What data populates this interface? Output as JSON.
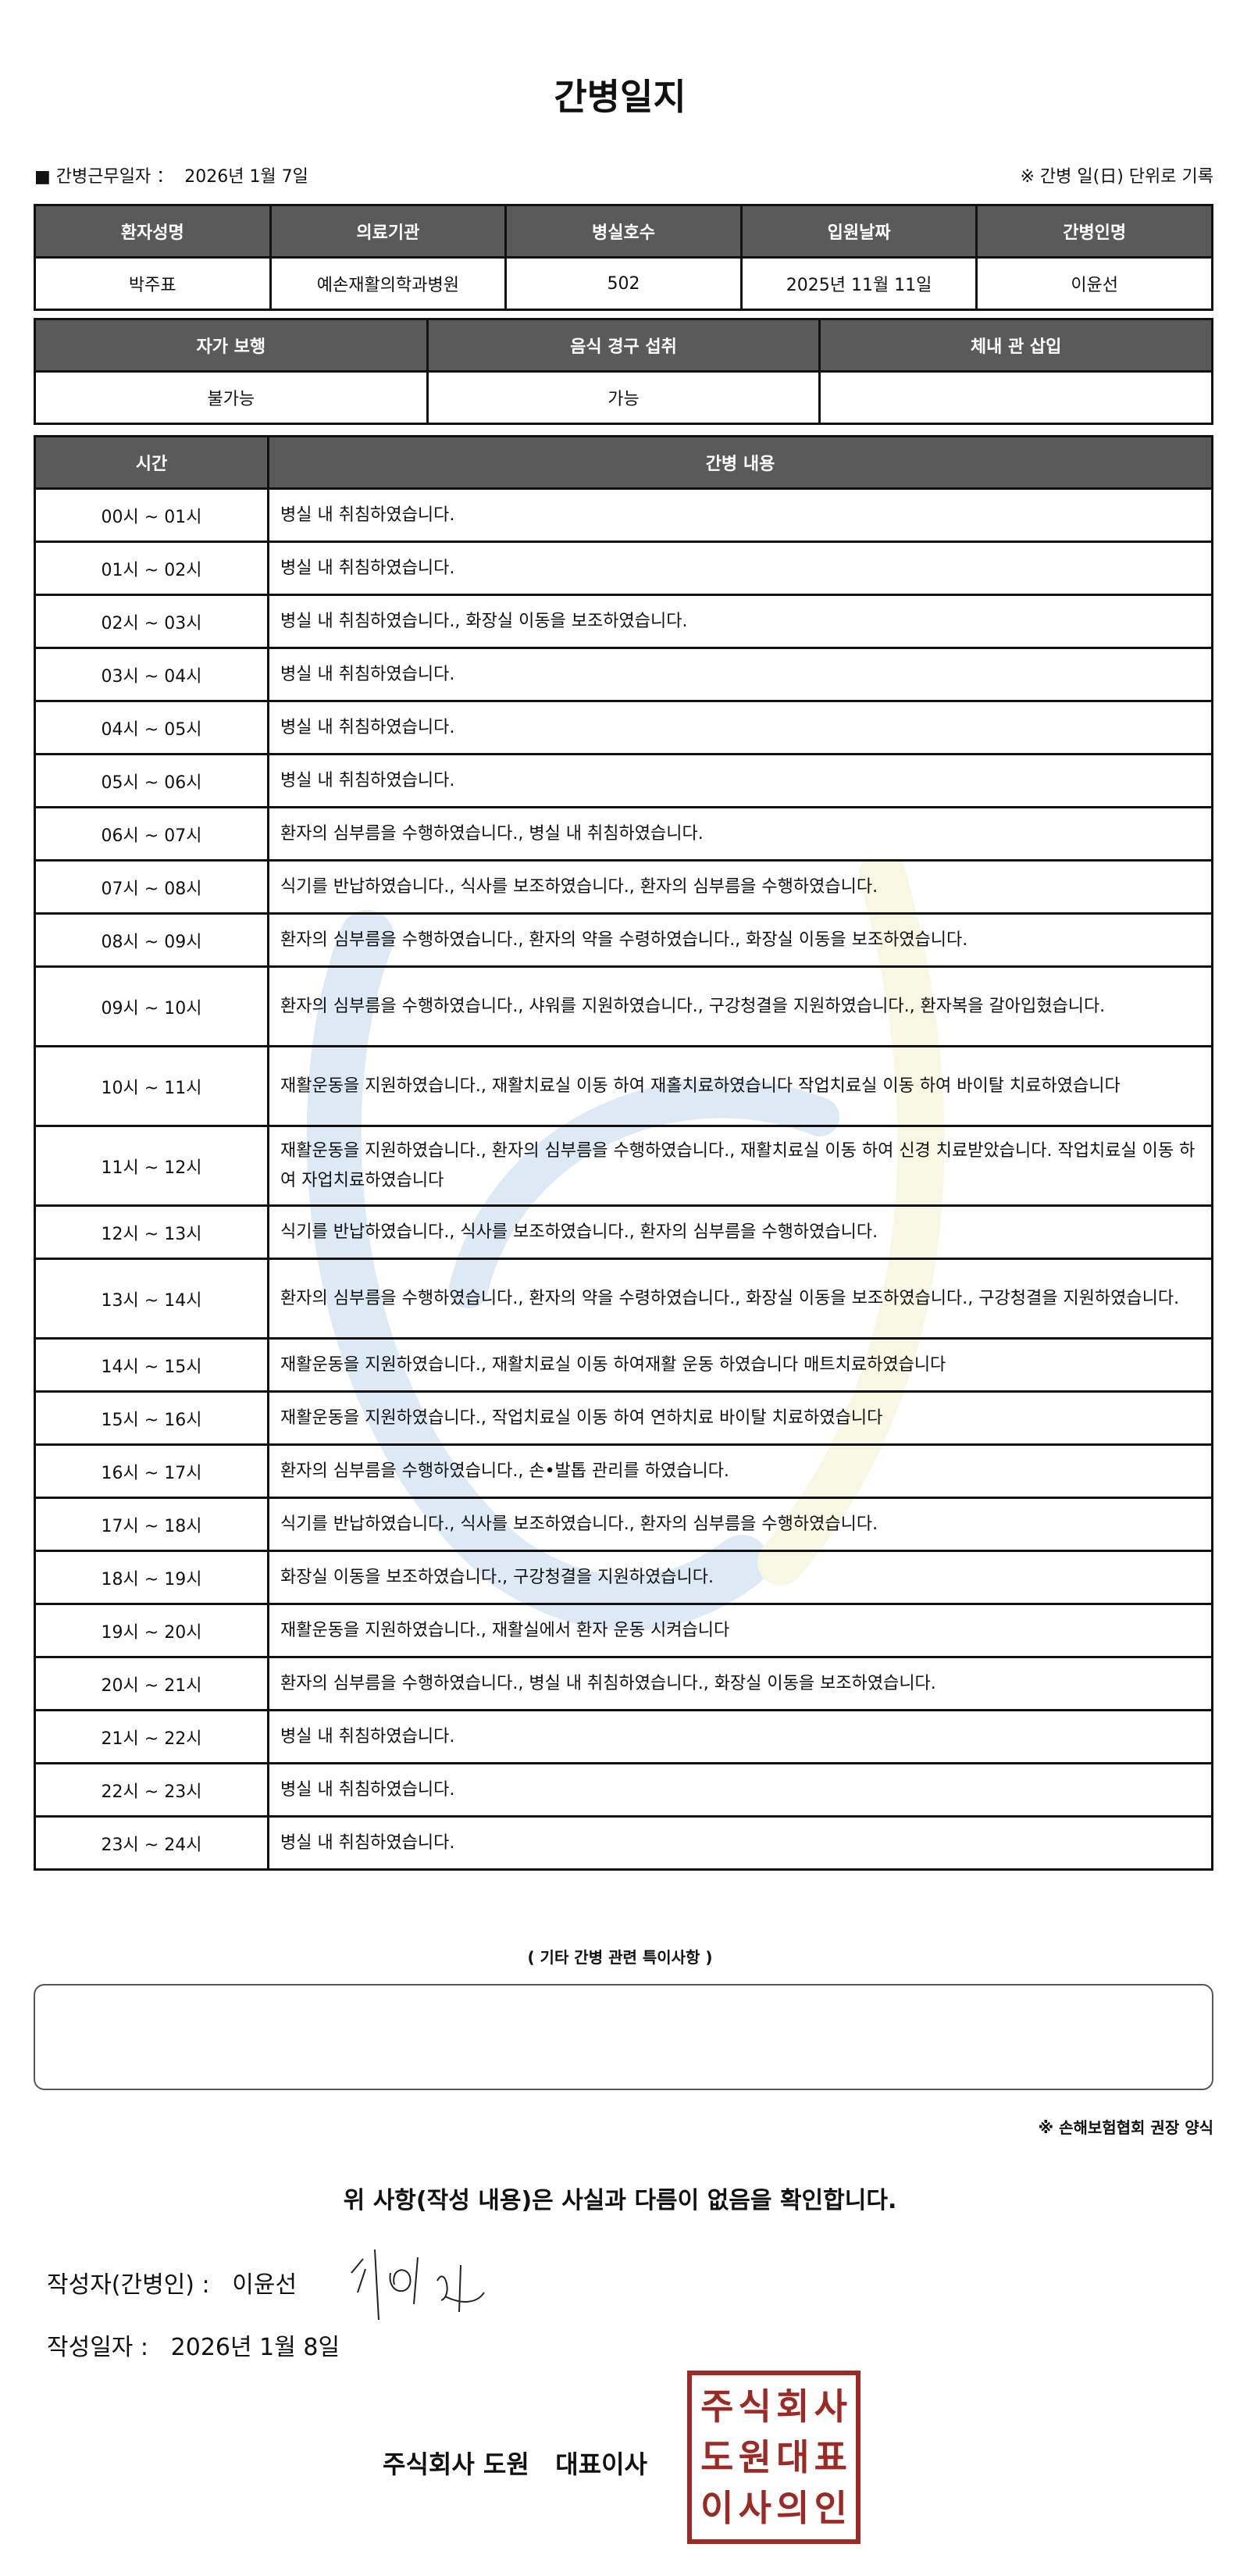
{
  "title": "간병일지",
  "work_date": {
    "label": "■ 간병근무일자 ：",
    "value": "2026년 1월 7일"
  },
  "unit_note": "※ 간병 일(日) 단위로 기록",
  "info": {
    "headers": [
      "환자성명",
      "의료기관",
      "병실호수",
      "입원날짜",
      "간병인명"
    ],
    "values": [
      "박주표",
      "예손재활의학과병원",
      "502",
      "2025년 11월 11일",
      "이윤선"
    ]
  },
  "status": {
    "headers": [
      "자가 보행",
      "음식 경구 섭취",
      "체내 관 삽입"
    ],
    "values": [
      "불가능",
      "가능",
      ""
    ]
  },
  "log": {
    "headers": [
      "시간",
      "간병 내용"
    ],
    "rows": [
      {
        "time": "00시 ~ 01시",
        "content": "병실 내 취침하였습니다."
      },
      {
        "time": "01시 ~ 02시",
        "content": "병실 내 취침하였습니다."
      },
      {
        "time": "02시 ~ 03시",
        "content": "병실 내 취침하였습니다., 화장실 이동을 보조하였습니다."
      },
      {
        "time": "03시 ~ 04시",
        "content": "병실 내 취침하였습니다."
      },
      {
        "time": "04시 ~ 05시",
        "content": "병실 내 취침하였습니다."
      },
      {
        "time": "05시 ~ 06시",
        "content": "병실 내 취침하였습니다."
      },
      {
        "time": "06시 ~ 07시",
        "content": "환자의 심부름을 수행하였습니다., 병실 내 취침하였습니다."
      },
      {
        "time": "07시 ~ 08시",
        "content": "식기를 반납하였습니다., 식사를 보조하였습니다., 환자의 심부름을 수행하였습니다."
      },
      {
        "time": "08시 ~ 09시",
        "content": "환자의 심부름을 수행하였습니다., 환자의 약을 수령하였습니다., 화장실 이동을 보조하였습니다."
      },
      {
        "time": "09시 ~ 10시",
        "content": "환자의 심부름을 수행하였습니다., 샤워를 지원하였습니다., 구강청결을 지원하였습니다., 환자복을 갈아입혔습니다."
      },
      {
        "time": "10시 ~ 11시",
        "content": "재활운동을 지원하였습니다., 재활치료실 이동 하여 재홀치료하였습니다 작업치료실 이동 하여 바이탈 치료하였습니다"
      },
      {
        "time": "11시 ~ 12시",
        "content": "재활운동을 지원하였습니다., 환자의 심부름을 수행하였습니다., 재활치료실 이동 하여 신경 치료받았습니다. 작업치료실 이동 하여 자업치료하였습니다"
      },
      {
        "time": "12시 ~ 13시",
        "content": "식기를 반납하였습니다., 식사를 보조하였습니다., 환자의 심부름을 수행하였습니다."
      },
      {
        "time": "13시 ~ 14시",
        "content": "환자의 심부름을 수행하였습니다., 환자의 약을 수령하였습니다., 화장실 이동을 보조하였습니다., 구강청결을 지원하였습니다."
      },
      {
        "time": "14시 ~ 15시",
        "content": "재활운동을 지원하였습니다., 재활치료실 이동 하여재활 운동 하였습니다 매트치료하였습니다"
      },
      {
        "time": "15시 ~ 16시",
        "content": "재활운동을 지원하였습니다., 작업치료실 이동 하여 연하치료 바이탈 치료하였습니다"
      },
      {
        "time": "16시 ~ 17시",
        "content": "환자의 심부름을 수행하였습니다., 손•발톱 관리를 하였습니다."
      },
      {
        "time": "17시 ~ 18시",
        "content": "식기를 반납하였습니다., 식사를 보조하였습니다., 환자의 심부름을 수행하였습니다."
      },
      {
        "time": "18시 ~ 19시",
        "content": "화장실 이동을 보조하였습니다., 구강청결을 지원하였습니다."
      },
      {
        "time": "19시 ~ 20시",
        "content": "재활운동을 지원하였습니다., 재활실에서 환자 운동 시켜습니다"
      },
      {
        "time": "20시 ~ 21시",
        "content": "환자의 심부름을 수행하였습니다., 병실 내 취침하였습니다., 화장실 이동을 보조하였습니다."
      },
      {
        "time": "21시 ~ 22시",
        "content": "병실 내 취침하였습니다."
      },
      {
        "time": "22시 ~ 23시",
        "content": "병실 내 취침하였습니다."
      },
      {
        "time": "23시 ~ 24시",
        "content": "병실 내 취침하였습니다."
      }
    ]
  },
  "notes": {
    "label": "( 기타 간병 관련 특이사항 )",
    "value": ""
  },
  "form_note": "※ 손해보험협회 권장 양식",
  "confirm": "위 사항(작성 내용)은 사실과 다름이 없음을 확인합니다.",
  "writer": {
    "label": "작성자(간병인) :",
    "value": "이윤선"
  },
  "written_date": {
    "label": "작성일자 :",
    "value": "2026년 1월 8일"
  },
  "company": "주식회사 도원   대표이사",
  "stamp_text": "주식회사도원대표이사의인",
  "colors": {
    "header_bg": "#5a5a5a",
    "stamp": "#9b2a25",
    "watermark_blue": "#4a8fd0",
    "watermark_yellow": "#d8d86a"
  }
}
